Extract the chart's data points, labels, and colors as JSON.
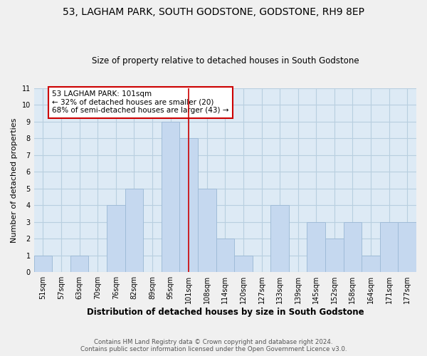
{
  "title1": "53, LAGHAM PARK, SOUTH GODSTONE, GODSTONE, RH9 8EP",
  "title2": "Size of property relative to detached houses in South Godstone",
  "xlabel": "Distribution of detached houses by size in South Godstone",
  "ylabel": "Number of detached properties",
  "bar_labels": [
    "51sqm",
    "57sqm",
    "63sqm",
    "70sqm",
    "76sqm",
    "82sqm",
    "89sqm",
    "95sqm",
    "101sqm",
    "108sqm",
    "114sqm",
    "120sqm",
    "127sqm",
    "133sqm",
    "139sqm",
    "145sqm",
    "152sqm",
    "158sqm",
    "164sqm",
    "171sqm",
    "177sqm"
  ],
  "bar_values": [
    1,
    0,
    1,
    0,
    4,
    5,
    0,
    9,
    8,
    5,
    2,
    1,
    0,
    4,
    0,
    3,
    2,
    3,
    1,
    3,
    3
  ],
  "bar_color": "#c5d8ef",
  "bar_edge_color": "#a0bcd8",
  "vline_x": 8,
  "vline_color": "#cc0000",
  "annotation_text": "53 LAGHAM PARK: 101sqm\n← 32% of detached houses are smaller (20)\n68% of semi-detached houses are larger (43) →",
  "annotation_box_color": "#ffffff",
  "annotation_border_color": "#cc0000",
  "ylim": [
    0,
    11
  ],
  "yticks": [
    0,
    1,
    2,
    3,
    4,
    5,
    6,
    7,
    8,
    9,
    10,
    11
  ],
  "footer": "Contains HM Land Registry data © Crown copyright and database right 2024.\nContains public sector information licensed under the Open Government Licence v3.0.",
  "grid_color": "#b8cfe0",
  "background_color": "#ddeaf5",
  "fig_background": "#f0f0f0"
}
